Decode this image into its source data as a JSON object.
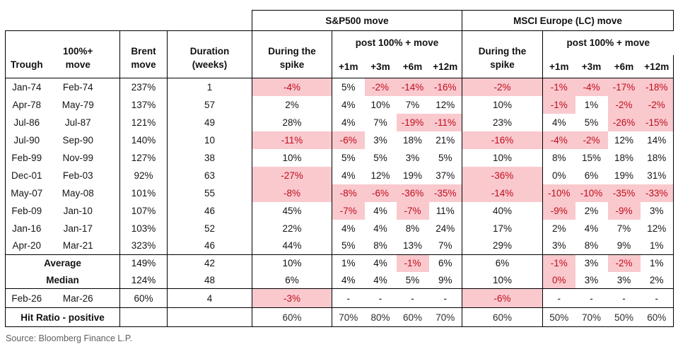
{
  "chart_data": {
    "type": "table",
    "groups": [
      {
        "label": "S&P500 move"
      },
      {
        "label": "MSCI Europe (LC) move"
      }
    ],
    "during_label": "During the\nspike",
    "subheader": "post 100% + move",
    "months": [
      "+1m",
      "+3m",
      "+6m",
      "+12m"
    ],
    "left_headers": [
      "Trough",
      "100%+\nmove",
      "Brent\nmove",
      "Duration\n(weeks)"
    ],
    "columns_flat": [
      "Trough",
      "100%+ move",
      "Brent move",
      "Duration (weeks)",
      "S&P500 During the spike",
      "S&P500 +1m",
      "S&P500 +3m",
      "S&P500 +6m",
      "S&P500 +12m",
      "MSCI Europe During the spike",
      "MSCI Europe +1m",
      "MSCI Europe +3m",
      "MSCI Europe +6m",
      "MSCI Europe +12m"
    ],
    "rows": [
      {
        "cells": [
          "Jan-74",
          "Feb-74",
          "237%",
          "1",
          "-4%",
          "5%",
          "-2%",
          "-14%",
          "-16%",
          "-2%",
          "-1%",
          "-4%",
          "-17%",
          "-18%"
        ],
        "hl": [
          0,
          0,
          0,
          0,
          1,
          0,
          1,
          1,
          1,
          1,
          1,
          1,
          1,
          1
        ]
      },
      {
        "cells": [
          "Apr-78",
          "May-79",
          "137%",
          "57",
          "2%",
          "4%",
          "10%",
          "7%",
          "12%",
          "10%",
          "-1%",
          "1%",
          "-2%",
          "-2%"
        ],
        "hl": [
          0,
          0,
          0,
          0,
          0,
          0,
          0,
          0,
          0,
          0,
          1,
          0,
          1,
          1
        ]
      },
      {
        "cells": [
          "Jul-86",
          "Jul-87",
          "121%",
          "49",
          "28%",
          "4%",
          "7%",
          "-19%",
          "-11%",
          "23%",
          "4%",
          "5%",
          "-26%",
          "-15%"
        ],
        "hl": [
          0,
          0,
          0,
          0,
          0,
          0,
          0,
          1,
          1,
          0,
          0,
          0,
          1,
          1
        ]
      },
      {
        "cells": [
          "Jul-90",
          "Sep-90",
          "140%",
          "10",
          "-11%",
          "-6%",
          "3%",
          "18%",
          "21%",
          "-16%",
          "-4%",
          "-2%",
          "12%",
          "14%"
        ],
        "hl": [
          0,
          0,
          0,
          0,
          1,
          1,
          0,
          0,
          0,
          1,
          1,
          1,
          0,
          0
        ]
      },
      {
        "cells": [
          "Feb-99",
          "Nov-99",
          "127%",
          "38",
          "10%",
          "5%",
          "5%",
          "3%",
          "5%",
          "10%",
          "8%",
          "15%",
          "18%",
          "18%"
        ],
        "hl": [
          0,
          0,
          0,
          0,
          0,
          0,
          0,
          0,
          0,
          0,
          0,
          0,
          0,
          0
        ]
      },
      {
        "cells": [
          "Dec-01",
          "Feb-03",
          "92%",
          "63",
          "-27%",
          "4%",
          "12%",
          "19%",
          "37%",
          "-36%",
          "0%",
          "6%",
          "19%",
          "31%"
        ],
        "hl": [
          0,
          0,
          0,
          0,
          1,
          0,
          0,
          0,
          0,
          1,
          0,
          0,
          0,
          0
        ]
      },
      {
        "cells": [
          "May-07",
          "May-08",
          "101%",
          "55",
          "-8%",
          "-8%",
          "-6%",
          "-36%",
          "-35%",
          "-14%",
          "-10%",
          "-10%",
          "-35%",
          "-33%"
        ],
        "hl": [
          0,
          0,
          0,
          0,
          1,
          1,
          1,
          1,
          1,
          1,
          1,
          1,
          1,
          1
        ]
      },
      {
        "cells": [
          "Feb-09",
          "Jan-10",
          "107%",
          "46",
          "45%",
          "-7%",
          "4%",
          "-7%",
          "11%",
          "40%",
          "-9%",
          "2%",
          "-9%",
          "3%"
        ],
        "hl": [
          0,
          0,
          0,
          0,
          0,
          1,
          0,
          1,
          0,
          0,
          1,
          0,
          1,
          0
        ]
      },
      {
        "cells": [
          "Jan-16",
          "Jan-17",
          "103%",
          "52",
          "22%",
          "4%",
          "4%",
          "8%",
          "24%",
          "17%",
          "2%",
          "4%",
          "7%",
          "12%"
        ],
        "hl": [
          0,
          0,
          0,
          0,
          0,
          0,
          0,
          0,
          0,
          0,
          0,
          0,
          0,
          0
        ]
      },
      {
        "cells": [
          "Apr-20",
          "Mar-21",
          "323%",
          "46",
          "44%",
          "5%",
          "8%",
          "13%",
          "7%",
          "29%",
          "3%",
          "8%",
          "9%",
          "1%"
        ],
        "hl": [
          0,
          0,
          0,
          0,
          0,
          0,
          0,
          0,
          0,
          0,
          0,
          0,
          0,
          0
        ]
      }
    ],
    "summary_rows": [
      {
        "label": "Average",
        "cells": [
          "149%",
          "42",
          "10%",
          "1%",
          "4%",
          "-1%",
          "6%",
          "6%",
          "-1%",
          "3%",
          "-2%",
          "1%"
        ],
        "hl": [
          0,
          0,
          0,
          0,
          0,
          1,
          0,
          0,
          1,
          0,
          1,
          0
        ]
      },
      {
        "label": "Median",
        "cells": [
          "124%",
          "48",
          "6%",
          "4%",
          "4%",
          "5%",
          "9%",
          "10%",
          "0%",
          "3%",
          "3%",
          "2%"
        ],
        "hl": [
          0,
          0,
          0,
          0,
          0,
          0,
          0,
          0,
          1,
          0,
          0,
          0
        ]
      }
    ],
    "forecast_row": {
      "cells": [
        "Feb-26",
        "Mar-26",
        "60%",
        "4",
        "-3%",
        "-",
        "-",
        "-",
        "-",
        "-6%",
        "-",
        "-",
        "-",
        "-"
      ],
      "hl": [
        0,
        0,
        0,
        0,
        1,
        0,
        0,
        0,
        0,
        1,
        0,
        0,
        0,
        0
      ]
    },
    "hit_ratio_row": {
      "label": "Hit Ratio - positive",
      "cells": [
        "",
        "",
        "60%",
        "70%",
        "80%",
        "60%",
        "70%",
        "60%",
        "50%",
        "70%",
        "50%",
        "60%"
      ]
    },
    "source": "Source: Bloomberg Finance L.P.",
    "colors": {
      "highlight_bg": "#f9c9ce",
      "highlight_text": "#c00d1d",
      "border": "#000000",
      "source_text": "#5f5f5f"
    }
  }
}
